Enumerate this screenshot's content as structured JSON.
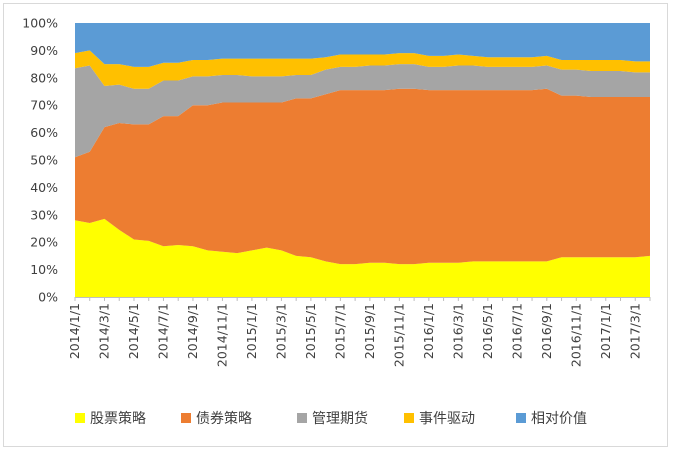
{
  "chart_data": {
    "type": "area",
    "stacked": true,
    "percent": true,
    "title": "",
    "xlabel": "",
    "ylabel": "",
    "ylim": [
      0,
      100
    ],
    "y_ticks": [
      "0%",
      "10%",
      "20%",
      "30%",
      "40%",
      "50%",
      "60%",
      "70%",
      "80%",
      "90%",
      "100%"
    ],
    "x_tick_labels": [
      "2014/1/1",
      "2014/3/1",
      "2014/5/1",
      "2014/7/1",
      "2014/9/1",
      "2014/11/1",
      "2015/1/1",
      "2015/3/1",
      "2015/5/1",
      "2015/7/1",
      "2015/9/1",
      "2015/11/1",
      "2016/1/1",
      "2016/3/1",
      "2016/5/1",
      "2016/7/1",
      "2016/9/1",
      "2016/11/1",
      "2017/1/1",
      "2017/3/1"
    ],
    "grid": false,
    "legend_position": "bottom",
    "x": [
      "2014/1/1",
      "2014/2/1",
      "2014/3/1",
      "2014/4/1",
      "2014/5/1",
      "2014/6/1",
      "2014/7/1",
      "2014/8/1",
      "2014/9/1",
      "2014/10/1",
      "2014/11/1",
      "2014/12/1",
      "2015/1/1",
      "2015/2/1",
      "2015/3/1",
      "2015/4/1",
      "2015/5/1",
      "2015/6/1",
      "2015/7/1",
      "2015/8/1",
      "2015/9/1",
      "2015/10/1",
      "2015/11/1",
      "2015/12/1",
      "2016/1/1",
      "2016/2/1",
      "2016/3/1",
      "2016/4/1",
      "2016/5/1",
      "2016/6/1",
      "2016/7/1",
      "2016/8/1",
      "2016/9/1",
      "2016/10/1",
      "2016/11/1",
      "2016/12/1",
      "2017/1/1",
      "2017/2/1",
      "2017/3/1",
      "2017/4/1"
    ],
    "series": [
      {
        "name": "股票策略",
        "color": "#ffff00",
        "values": [
          28,
          27,
          28.5,
          24.5,
          21,
          20.5,
          18.5,
          19,
          18.5,
          17,
          16.5,
          16,
          17,
          18,
          17,
          15,
          14.5,
          13,
          12,
          12,
          12.5,
          12.5,
          12,
          12,
          12.5,
          12.5,
          12.5,
          13,
          13,
          13,
          13,
          13,
          13,
          14.5,
          14.5,
          14.5,
          14.5,
          14.5,
          14.5,
          15
        ]
      },
      {
        "name": "债券策略",
        "color": "#ed7d31",
        "values": [
          23,
          26,
          33.5,
          39,
          42,
          42.5,
          47.5,
          47,
          51.5,
          53,
          54.5,
          55,
          54,
          53,
          54,
          57.5,
          58,
          61,
          63.5,
          63.5,
          63,
          63,
          64,
          64,
          63,
          63,
          63,
          62.5,
          62.5,
          62.5,
          62.5,
          62.5,
          63,
          59,
          59,
          58.5,
          58.5,
          58.5,
          58.5,
          58
        ]
      },
      {
        "name": "管理期货",
        "color": "#a5a5a5",
        "values": [
          32.5,
          31.5,
          15,
          14,
          13,
          13,
          13,
          13,
          10.5,
          10.5,
          10,
          10,
          9.5,
          9.5,
          9.5,
          8.5,
          8.5,
          9,
          8.5,
          8.5,
          9,
          9,
          9,
          9,
          8.5,
          8.5,
          9,
          9,
          8.5,
          8.5,
          8.5,
          8.5,
          8.5,
          9.5,
          9.5,
          9.5,
          9.5,
          9.5,
          9,
          9
        ]
      },
      {
        "name": "事件驱动",
        "color": "#ffc000",
        "values": [
          5.5,
          5.5,
          8,
          7.5,
          8,
          8,
          6.5,
          6.5,
          6,
          6,
          6,
          6,
          6.5,
          6.5,
          6.5,
          6,
          6,
          4.5,
          4.5,
          4.5,
          4,
          4,
          4,
          4,
          4,
          4,
          4,
          3.5,
          3.5,
          3.5,
          3.5,
          3.5,
          3.5,
          3.5,
          3.5,
          4,
          4,
          4,
          4,
          4
        ]
      },
      {
        "name": "相对价值",
        "color": "#5b9bd5",
        "values": [
          11,
          10,
          15,
          15,
          16,
          16,
          14.5,
          14.5,
          13.5,
          13.5,
          13,
          13,
          13,
          13,
          13,
          13,
          13,
          12.5,
          11.5,
          11.5,
          11.5,
          11.5,
          11,
          11,
          12,
          12,
          11.5,
          12,
          12.5,
          12.5,
          12.5,
          12.5,
          12,
          13.5,
          13.5,
          13.5,
          13.5,
          13.5,
          14,
          14
        ]
      }
    ]
  }
}
